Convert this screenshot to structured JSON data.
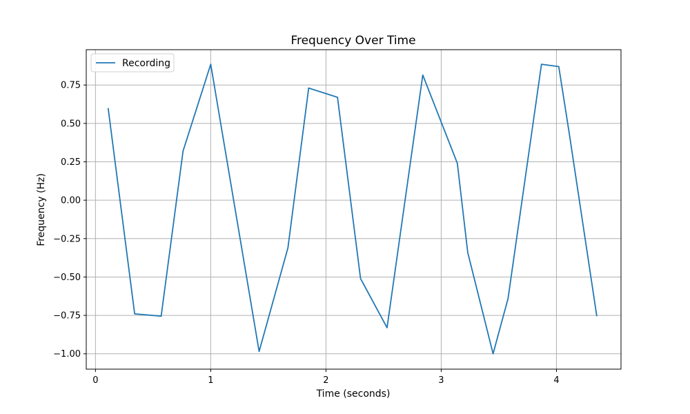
{
  "chart_data": {
    "type": "line",
    "title": "Frequency Over Time",
    "xlabel": "Time (seconds)",
    "ylabel": "Frequency (Hz)",
    "xlim": [
      -0.08,
      4.56
    ],
    "ylim": [
      -1.1,
      0.98
    ],
    "x_ticks": [
      0,
      1,
      2,
      3,
      4
    ],
    "x_tick_labels": [
      "0",
      "1",
      "2",
      "3",
      "4"
    ],
    "y_ticks": [
      -1.0,
      -0.75,
      -0.5,
      -0.25,
      0.0,
      0.25,
      0.5,
      0.75
    ],
    "y_tick_labels": [
      "−1.00",
      "−0.75",
      "−0.50",
      "−0.25",
      "0.00",
      "0.25",
      "0.50",
      "0.75"
    ],
    "grid": true,
    "legend": {
      "placement": "top-left",
      "entries": [
        "Recording"
      ]
    },
    "series": [
      {
        "name": "Recording",
        "color": "#1f77b4",
        "x": [
          0.11,
          0.34,
          0.57,
          0.76,
          1.0,
          1.42,
          1.67,
          1.85,
          2.1,
          2.3,
          2.53,
          2.84,
          3.14,
          3.23,
          3.45,
          3.58,
          3.87,
          4.02,
          4.11,
          4.35
        ],
        "y": [
          0.6,
          -0.74,
          -0.755,
          0.32,
          0.885,
          -0.985,
          -0.31,
          0.73,
          0.67,
          -0.51,
          -0.83,
          0.815,
          0.24,
          -0.34,
          -1.0,
          -0.64,
          0.885,
          0.87,
          0.44,
          -0.755
        ]
      }
    ]
  }
}
